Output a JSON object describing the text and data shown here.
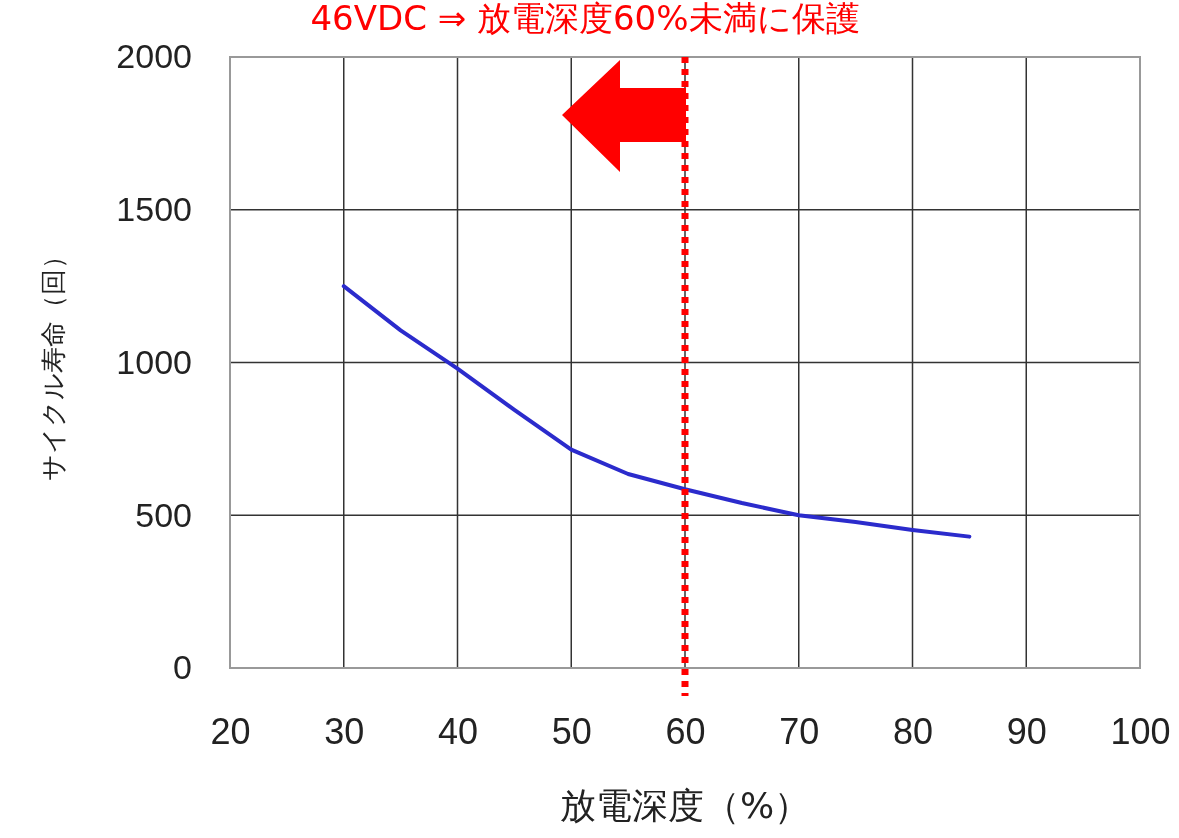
{
  "chart_data": {
    "type": "line",
    "title": "46VDC ⇒ 放電深度60%未満に保護",
    "xlabel": "放電深度（%）",
    "ylabel": "サイクル寿命（回）",
    "x": [
      30,
      35,
      40,
      45,
      50,
      55,
      60,
      65,
      70,
      75,
      80,
      85
    ],
    "series": [
      {
        "color": "#2b2bcc",
        "values": [
          1250,
          1105,
          980,
          845,
          715,
          635,
          585,
          540,
          500,
          478,
          452,
          430
        ]
      }
    ],
    "xlim": [
      20,
      100
    ],
    "xticks": [
      20,
      30,
      40,
      50,
      60,
      70,
      80,
      90,
      100
    ],
    "ylim": [
      0,
      2000
    ],
    "yticks": [
      0,
      500,
      1000,
      1500,
      2000
    ],
    "grid": true,
    "marker": "none",
    "line_style": "solid",
    "ref_lines": [
      {
        "axis": "x",
        "value": 60,
        "color": "#ff0000",
        "line_style": "dotted"
      }
    ]
  }
}
